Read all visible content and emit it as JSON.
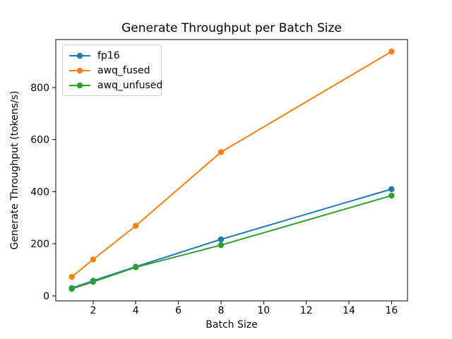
{
  "chart_data": {
    "type": "line",
    "title": "Generate Throughput per Batch Size",
    "xlabel": "Batch Size",
    "ylabel": "Generate Throughput (tokens/s)",
    "x": [
      1,
      2,
      4,
      8,
      16
    ],
    "series": [
      {
        "name": "fp16",
        "color": "#1f77b4",
        "values": [
          30,
          58,
          112,
          217,
          410
        ]
      },
      {
        "name": "awq_fused",
        "color": "#ff7f0e",
        "values": [
          73,
          140,
          269,
          552,
          938
        ]
      },
      {
        "name": "awq_unfused",
        "color": "#2ca02c",
        "values": [
          27,
          54,
          110,
          195,
          385
        ]
      }
    ],
    "xticks": [
      2,
      4,
      6,
      8,
      10,
      12,
      14,
      16
    ],
    "yticks": [
      0,
      200,
      400,
      600,
      800
    ],
    "xlim": [
      0.25,
      16.75
    ],
    "ylim": [
      -19,
      984
    ],
    "grid": false,
    "legend_position": "upper left",
    "marker": "o",
    "axis_color": "#000000",
    "legend_border_color": "#cccccc",
    "background_color": "#ffffff"
  }
}
